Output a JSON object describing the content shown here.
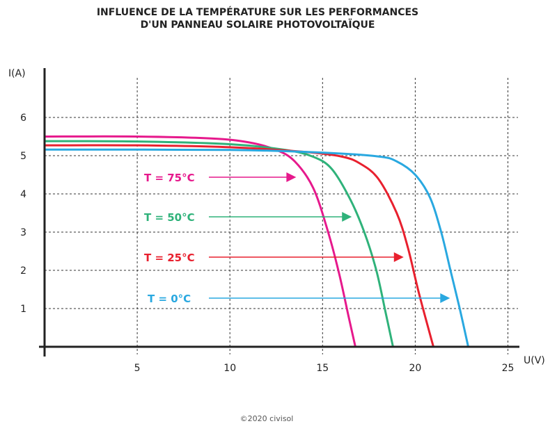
{
  "chart_data": {
    "type": "line",
    "title": [
      "INFLUENCE DE LA TEMPÉRATURE SUR LES PERFORMANCES",
      "D'UN PANNEAU SOLAIRE PHOTOVOLTAÏQUE"
    ],
    "xlabel": "U(V)",
    "ylabel": "I(A)",
    "xlim": [
      0,
      27
    ],
    "ylim": [
      0,
      7
    ],
    "xticks": [
      5,
      10,
      15,
      20,
      25
    ],
    "yticks": [
      1,
      2,
      3,
      4,
      5,
      6
    ],
    "grid": "dashed",
    "series": [
      {
        "name": "T = 75°C",
        "color": "#e6198c",
        "arrow_to": 13.5,
        "points": [
          [
            0,
            5.5
          ],
          [
            5,
            5.5
          ],
          [
            9,
            5.45
          ],
          [
            11,
            5.35
          ],
          [
            12.5,
            5.15
          ],
          [
            13.5,
            4.85
          ],
          [
            14.5,
            4.15
          ],
          [
            15.3,
            3.0
          ],
          [
            15.9,
            1.9
          ],
          [
            16.4,
            0.8
          ],
          [
            16.77,
            0
          ]
        ]
      },
      {
        "name": "T = 50°C",
        "color": "#2fb27a",
        "arrow_to": 16.5,
        "points": [
          [
            0,
            5.38
          ],
          [
            5,
            5.37
          ],
          [
            10,
            5.3
          ],
          [
            13,
            5.15
          ],
          [
            14.5,
            4.97
          ],
          [
            15.5,
            4.65
          ],
          [
            16.5,
            3.85
          ],
          [
            17.25,
            3.0
          ],
          [
            17.9,
            2.0
          ],
          [
            18.4,
            0.9
          ],
          [
            18.8,
            0
          ]
        ]
      },
      {
        "name": "T = 25°C",
        "color": "#e8202e",
        "arrow_to": 19.3,
        "points": [
          [
            0,
            5.27
          ],
          [
            5,
            5.27
          ],
          [
            10,
            5.22
          ],
          [
            14,
            5.1
          ],
          [
            16,
            4.98
          ],
          [
            17,
            4.8
          ],
          [
            18,
            4.4
          ],
          [
            19,
            3.5
          ],
          [
            19.6,
            2.6
          ],
          [
            20.2,
            1.4
          ],
          [
            20.98,
            0
          ]
        ]
      },
      {
        "name": "T = 0°C",
        "color": "#29a8e0",
        "arrow_to": 21.8,
        "points": [
          [
            0,
            5.16
          ],
          [
            10,
            5.15
          ],
          [
            15,
            5.08
          ],
          [
            18,
            4.98
          ],
          [
            19,
            4.85
          ],
          [
            20,
            4.5
          ],
          [
            20.8,
            3.9
          ],
          [
            21.4,
            3.0
          ],
          [
            21.9,
            2.0
          ],
          [
            22.4,
            1.0
          ],
          [
            22.86,
            0
          ]
        ]
      }
    ]
  },
  "copyright": "©2020 civisol"
}
